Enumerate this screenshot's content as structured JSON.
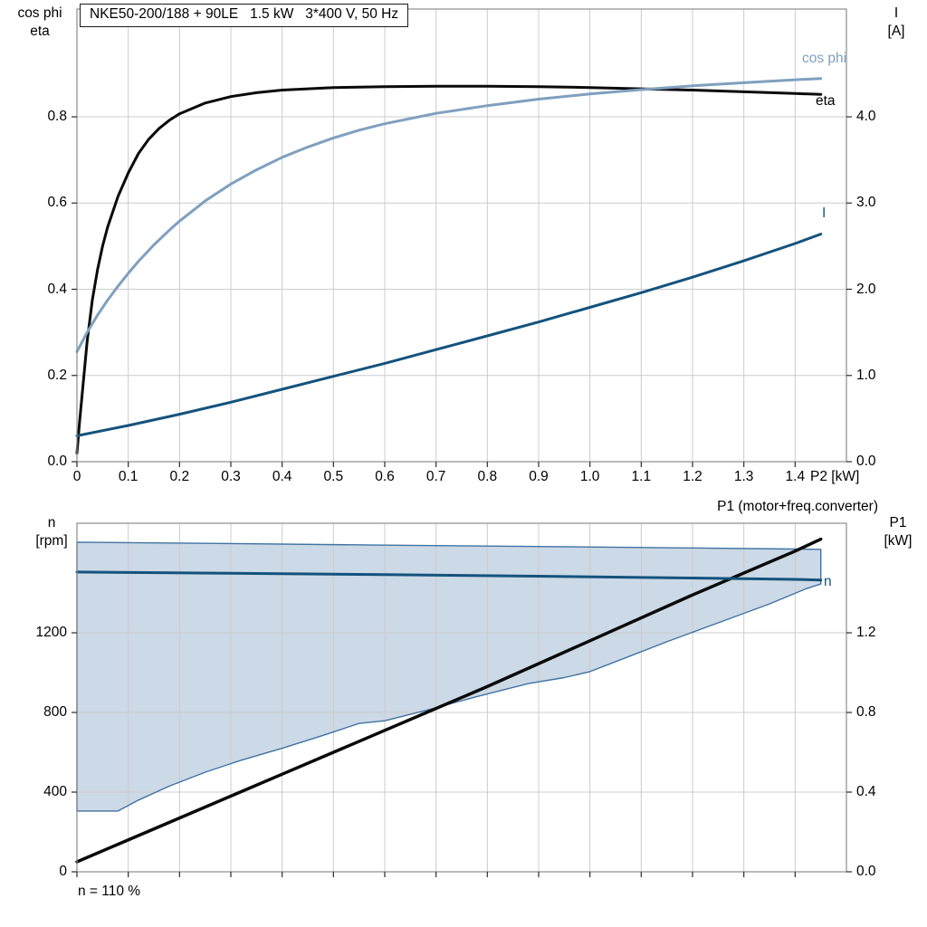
{
  "chart_data": [
    {
      "type": "line",
      "title": "NKE50-200/188 + 90LE   1.5 kW   3*400 V, 50 Hz",
      "x_axis": {
        "label": "P2 [kW]",
        "min": 0,
        "max": 1.5,
        "ticks": [
          0,
          0.1,
          0.2,
          0.3,
          0.4,
          0.5,
          0.6,
          0.7,
          0.8,
          0.9,
          1.0,
          1.1,
          1.2,
          1.3,
          1.4
        ],
        "labels": [
          "0",
          "0.1",
          "0.2",
          "0.3",
          "0.4",
          "0.5",
          "0.6",
          "0.7",
          "0.8",
          "0.9",
          "1.0",
          "1.1",
          "1.2",
          "1.3",
          "1.4"
        ]
      },
      "y_left": {
        "label": "cos phi\neta",
        "min": 0,
        "max": 1.05,
        "ticks": [
          0,
          0.2,
          0.4,
          0.6,
          0.8
        ],
        "labels": [
          "0.0",
          "0.2",
          "0.4",
          "0.6",
          "0.8"
        ]
      },
      "y_right": {
        "label": "I\n[A]",
        "min": 0,
        "max": 5.25,
        "ticks": [
          0,
          1,
          2,
          3,
          4
        ],
        "labels": [
          "0.0",
          "1.0",
          "2.0",
          "3.0",
          "4.0"
        ]
      },
      "style": {
        "grid": "#cccccc",
        "frame": "#8c8c8c",
        "tick": "#2b2b2b"
      },
      "series": [
        {
          "name": "eta",
          "axis": "left",
          "color": "#0a0a0a",
          "width": 3,
          "points": [
            [
              0,
              0.02
            ],
            [
              0.005,
              0.09
            ],
            [
              0.01,
              0.155
            ],
            [
              0.02,
              0.28
            ],
            [
              0.03,
              0.375
            ],
            [
              0.04,
              0.445
            ],
            [
              0.05,
              0.5
            ],
            [
              0.06,
              0.545
            ],
            [
              0.08,
              0.615
            ],
            [
              0.1,
              0.67
            ],
            [
              0.12,
              0.715
            ],
            [
              0.14,
              0.748
            ],
            [
              0.16,
              0.773
            ],
            [
              0.18,
              0.792
            ],
            [
              0.2,
              0.807
            ],
            [
              0.25,
              0.832
            ],
            [
              0.3,
              0.847
            ],
            [
              0.35,
              0.856
            ],
            [
              0.4,
              0.862
            ],
            [
              0.5,
              0.868
            ],
            [
              0.6,
              0.87
            ],
            [
              0.7,
              0.871
            ],
            [
              0.8,
              0.871
            ],
            [
              0.9,
              0.87
            ],
            [
              1.0,
              0.868
            ],
            [
              1.1,
              0.865
            ],
            [
              1.2,
              0.862
            ],
            [
              1.3,
              0.858
            ],
            [
              1.4,
              0.854
            ],
            [
              1.45,
              0.852
            ]
          ]
        },
        {
          "name": "cos phi",
          "axis": "left",
          "color": "#7fa0bf",
          "width": 3,
          "points": [
            [
              0,
              0.255
            ],
            [
              0.02,
              0.3
            ],
            [
              0.04,
              0.34
            ],
            [
              0.06,
              0.375
            ],
            [
              0.08,
              0.407
            ],
            [
              0.1,
              0.437
            ],
            [
              0.12,
              0.465
            ],
            [
              0.15,
              0.503
            ],
            [
              0.18,
              0.537
            ],
            [
              0.2,
              0.558
            ],
            [
              0.25,
              0.605
            ],
            [
              0.3,
              0.644
            ],
            [
              0.35,
              0.677
            ],
            [
              0.4,
              0.706
            ],
            [
              0.45,
              0.73
            ],
            [
              0.5,
              0.751
            ],
            [
              0.55,
              0.769
            ],
            [
              0.6,
              0.784
            ],
            [
              0.7,
              0.808
            ],
            [
              0.8,
              0.826
            ],
            [
              0.9,
              0.841
            ],
            [
              1.0,
              0.853
            ],
            [
              1.1,
              0.863
            ],
            [
              1.2,
              0.872
            ],
            [
              1.3,
              0.879
            ],
            [
              1.4,
              0.886
            ],
            [
              1.45,
              0.889
            ]
          ]
        },
        {
          "name": "I",
          "axis": "right",
          "color": "#14527d",
          "width": 3,
          "points": [
            [
              0,
              0.3
            ],
            [
              0.1,
              0.42
            ],
            [
              0.2,
              0.55
            ],
            [
              0.3,
              0.69
            ],
            [
              0.4,
              0.84
            ],
            [
              0.5,
              0.99
            ],
            [
              0.6,
              1.14
            ],
            [
              0.7,
              1.3
            ],
            [
              0.8,
              1.46
            ],
            [
              0.9,
              1.62
            ],
            [
              1.0,
              1.79
            ],
            [
              1.1,
              1.96
            ],
            [
              1.2,
              2.14
            ],
            [
              1.3,
              2.33
            ],
            [
              1.4,
              2.53
            ],
            [
              1.45,
              2.64
            ]
          ]
        }
      ]
    },
    {
      "type": "line",
      "x_axis": {
        "min": 0,
        "max": 1.5,
        "ticks": [
          0,
          0.1,
          0.2,
          0.3,
          0.4,
          0.5,
          0.6,
          0.7,
          0.8,
          0.9,
          1.0,
          1.1,
          1.2,
          1.3,
          1.4
        ]
      },
      "y_left": {
        "label": "n\n[rpm]",
        "min": 0,
        "max": 1750,
        "ticks": [
          0,
          400,
          800,
          1200
        ],
        "labels": [
          "0",
          "400",
          "800",
          "1200"
        ]
      },
      "y_right": {
        "label": "P1\n[kW]",
        "min": 0,
        "max": 1.75,
        "ticks": [
          0,
          0.4,
          0.8,
          1.2
        ],
        "labels": [
          "0.0",
          "0.4",
          "0.8",
          "1.2"
        ]
      },
      "style": {
        "grid": "#cccccc",
        "frame": "#8c8c8c",
        "tick": "#2b2b2b"
      },
      "band": {
        "name": "speed-range",
        "axis": "left",
        "fill": "#ccd9e6",
        "stroke": "#4073a1",
        "upper": [
          [
            0,
            1655
          ],
          [
            0.3,
            1648
          ],
          [
            0.6,
            1640
          ],
          [
            0.9,
            1633
          ],
          [
            1.2,
            1626
          ],
          [
            1.45,
            1619
          ]
        ],
        "lower": [
          [
            0,
            305
          ],
          [
            0.08,
            305
          ],
          [
            0.12,
            360
          ],
          [
            0.18,
            430
          ],
          [
            0.25,
            500
          ],
          [
            0.32,
            560
          ],
          [
            0.4,
            620
          ],
          [
            0.48,
            685
          ],
          [
            0.55,
            745
          ],
          [
            0.6,
            758
          ],
          [
            0.68,
            810
          ],
          [
            0.78,
            880
          ],
          [
            0.88,
            945
          ],
          [
            0.95,
            975
          ],
          [
            1.0,
            1005
          ],
          [
            1.08,
            1085
          ],
          [
            1.15,
            1155
          ],
          [
            1.25,
            1250
          ],
          [
            1.35,
            1345
          ],
          [
            1.42,
            1420
          ],
          [
            1.45,
            1445
          ]
        ]
      },
      "series": [
        {
          "name": "P1 (motor+freq.converter)",
          "axis": "right",
          "color": "#0a0a0a",
          "width": 3.5,
          "points": [
            [
              0,
              0.05
            ],
            [
              0.2,
              0.27
            ],
            [
              0.4,
              0.49
            ],
            [
              0.6,
              0.71
            ],
            [
              0.8,
              0.93
            ],
            [
              1.0,
              1.16
            ],
            [
              1.2,
              1.39
            ],
            [
              1.4,
              1.61
            ],
            [
              1.45,
              1.67
            ]
          ]
        },
        {
          "name": "n",
          "axis": "left",
          "color": "#14527d",
          "width": 3,
          "points": [
            [
              0,
              1505
            ],
            [
              0.3,
              1499
            ],
            [
              0.6,
              1492
            ],
            [
              0.9,
              1484
            ],
            [
              1.2,
              1475
            ],
            [
              1.4,
              1468
            ],
            [
              1.45,
              1465
            ]
          ]
        }
      ],
      "annotations": [
        "n = 110 %"
      ]
    }
  ],
  "colors": {
    "dark_blue": "#14527d",
    "light_blue": "#7fa0bf",
    "band_fill": "#ccd9e6",
    "band_stroke": "#4073a1",
    "black_curve": "#0a0a0a"
  }
}
